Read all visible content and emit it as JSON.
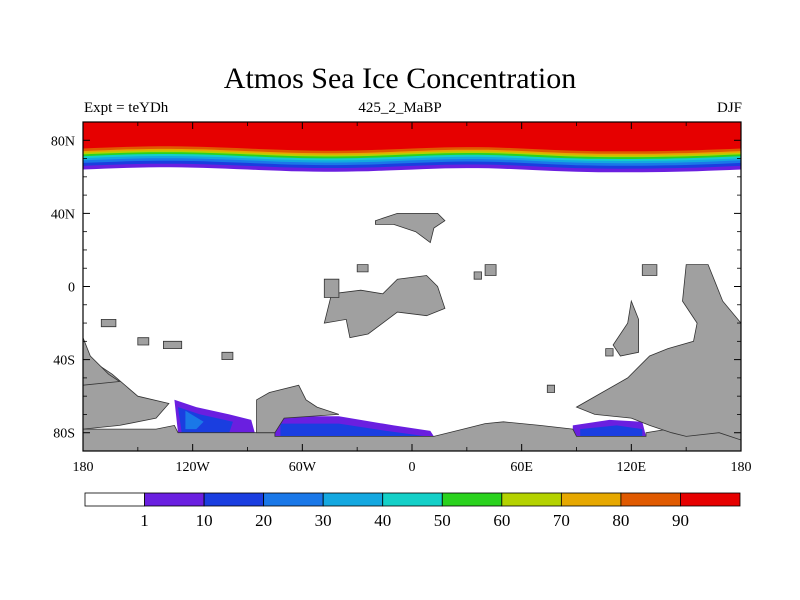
{
  "chart_data": {
    "type": "heatmap",
    "title": "Atmos Sea Ice Concentration",
    "left_annotation": "Expt = teYDh",
    "center_annotation": "425_2_MaBP",
    "right_annotation": "DJF",
    "variable": "sea ice concentration (%)",
    "x_axis": {
      "range": [
        -180,
        180
      ],
      "ticks": [
        -180,
        -120,
        -60,
        0,
        60,
        120,
        180
      ],
      "tick_labels": [
        "180",
        "120W",
        "60W",
        "0",
        "60E",
        "120E",
        "180"
      ]
    },
    "y_axis": {
      "range": [
        -90,
        90
      ],
      "ticks": [
        80,
        40,
        0,
        -40,
        -80
      ],
      "tick_labels": [
        "80N",
        "40N",
        "0",
        "40S",
        "80S"
      ]
    },
    "colorbar": {
      "levels": [
        1,
        10,
        20,
        30,
        40,
        50,
        60,
        70,
        80,
        90
      ],
      "colors": [
        "#ffffff",
        "#6a1fe0",
        "#1a3ee0",
        "#1a78e8",
        "#14a8e0",
        "#14d0c8",
        "#2ad21e",
        "#b4d200",
        "#e6a800",
        "#e05a00",
        "#e60000"
      ]
    },
    "land_color": "#a0a0a0",
    "fields": {
      "arctic_band": "concentration increases northward from 1 at ~62-66N to >90 poleward of ~75N",
      "antarctic_patches": [
        {
          "region": "Amundsen-Bellingshausen sector",
          "lon_range": [
            -130,
            -90
          ],
          "max_level": 20
        },
        {
          "region": "Weddell sector",
          "lon_range": [
            -75,
            10
          ],
          "max_level": 20
        },
        {
          "region": "East Antarctic sector",
          "lon_range": [
            90,
            130
          ],
          "max_level": 20
        }
      ]
    }
  }
}
